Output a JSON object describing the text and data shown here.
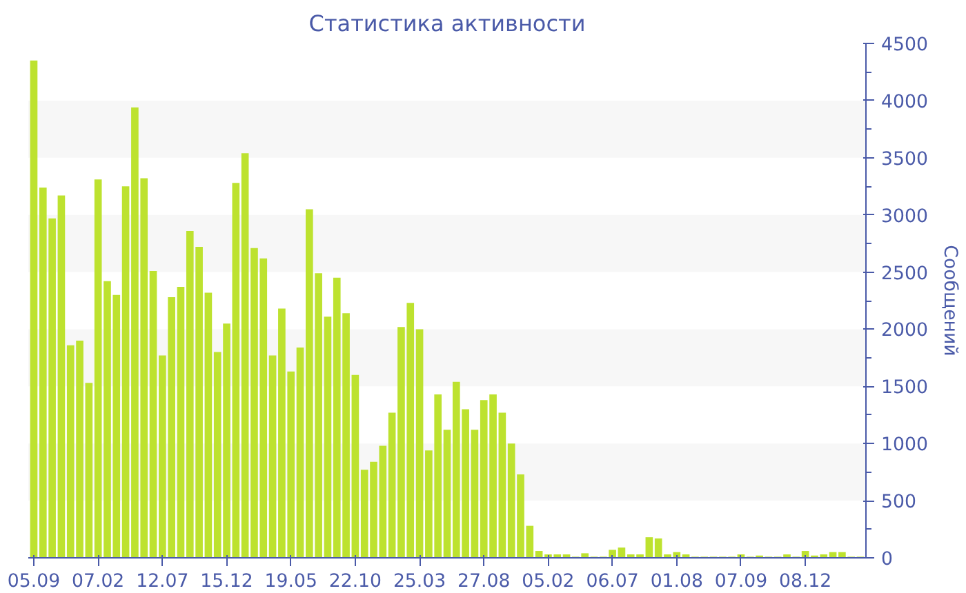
{
  "chart_data": {
    "type": "bar",
    "title": "Статистика активности",
    "ylabel": "Сообщений",
    "categories": [
      "05.09",
      null,
      null,
      null,
      null,
      null,
      null,
      "07.02",
      null,
      null,
      null,
      null,
      null,
      null,
      "12.07",
      null,
      null,
      null,
      null,
      null,
      null,
      "15.12",
      null,
      null,
      null,
      null,
      null,
      null,
      "19.05",
      null,
      null,
      null,
      null,
      null,
      null,
      "22.10",
      null,
      null,
      null,
      null,
      null,
      null,
      "25.03",
      null,
      null,
      null,
      null,
      null,
      null,
      "27.08",
      null,
      null,
      null,
      null,
      null,
      null,
      "05.02",
      null,
      null,
      null,
      null,
      null,
      null,
      "06.07",
      null,
      null,
      null,
      null,
      null,
      null,
      "01.08",
      null,
      null,
      null,
      null,
      null,
      null,
      "07.09",
      null,
      null,
      null,
      null,
      null,
      null,
      "08.12",
      null,
      null,
      null,
      null,
      null,
      null
    ],
    "values": [
      4350,
      3240,
      2970,
      3170,
      1860,
      1900,
      1530,
      3310,
      2420,
      2300,
      3250,
      3940,
      3320,
      2510,
      1770,
      2280,
      2370,
      2860,
      2720,
      2320,
      1800,
      2050,
      3280,
      3540,
      2710,
      2620,
      1770,
      2180,
      1630,
      1840,
      3050,
      2490,
      2110,
      2450,
      2140,
      1600,
      770,
      840,
      980,
      1270,
      2020,
      2230,
      2000,
      940,
      1430,
      1120,
      1540,
      1300,
      1120,
      1380,
      1430,
      1270,
      1000,
      730,
      280,
      60,
      30,
      30,
      30,
      10,
      40,
      10,
      10,
      70,
      90,
      30,
      30,
      180,
      170,
      30,
      50,
      30,
      10,
      10,
      10,
      10,
      10,
      30,
      10,
      20,
      10,
      10,
      30,
      10,
      60,
      20,
      30,
      50,
      50,
      10,
      10
    ],
    "color": "#bde22f",
    "ylim": [
      0,
      4500
    ],
    "yticks": [
      0,
      500,
      1000,
      1500,
      2000,
      2500,
      3000,
      3500,
      4000,
      4500
    ],
    "bands": [
      {
        "axis": "y",
        "from": 500,
        "to": 1000,
        "color": "#f7f7f7"
      },
      {
        "axis": "y",
        "from": 1500,
        "to": 2000,
        "color": "#f7f7f7"
      },
      {
        "axis": "y",
        "from": 2500,
        "to": 3000,
        "color": "#f7f7f7"
      },
      {
        "axis": "y",
        "from": 3500,
        "to": 4000,
        "color": "#f7f7f7"
      }
    ]
  }
}
